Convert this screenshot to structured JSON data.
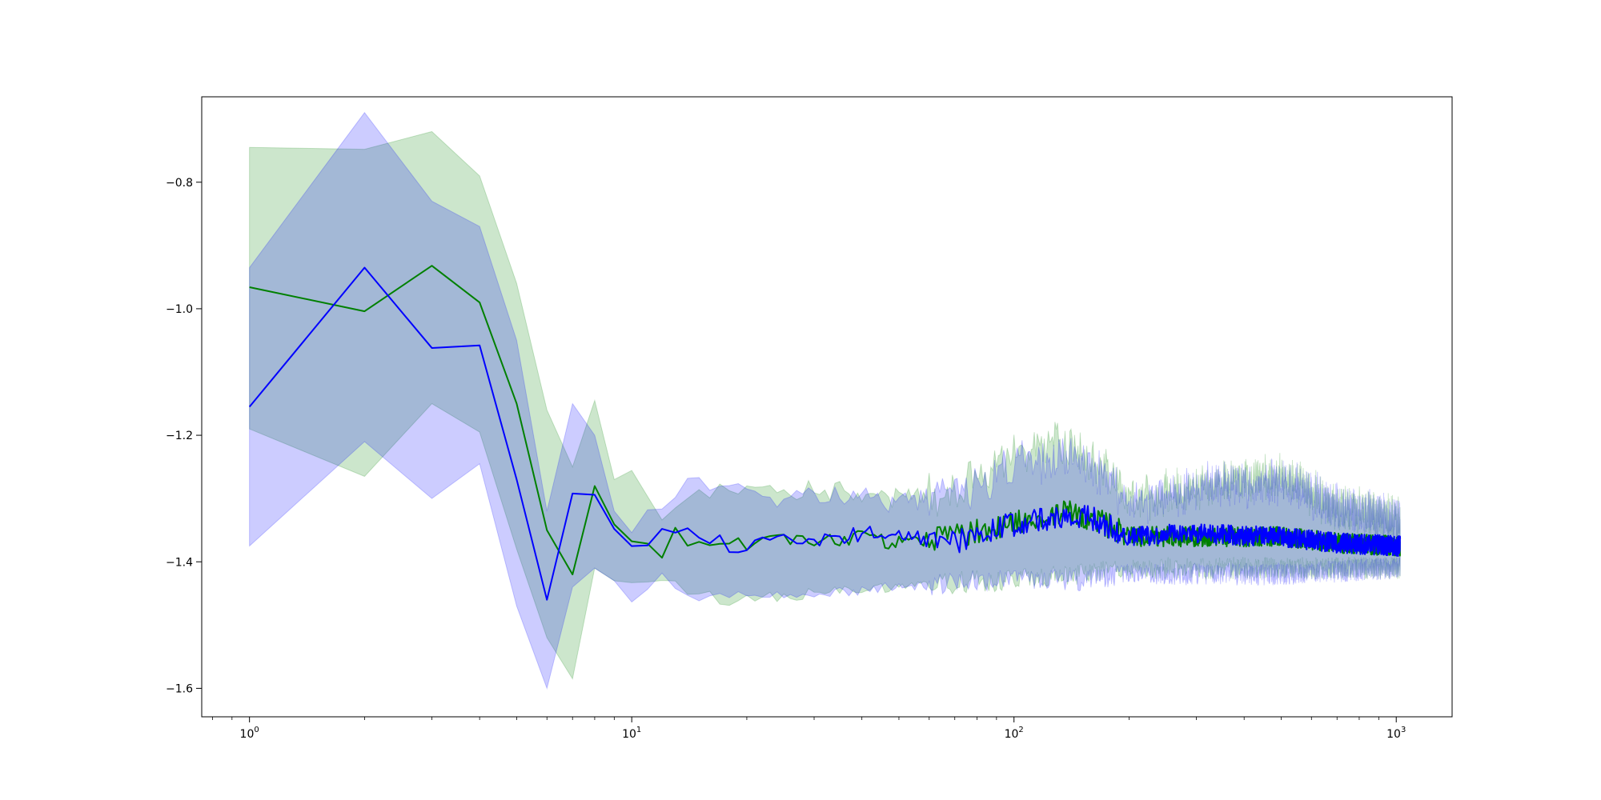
{
  "chart_data": {
    "type": "line",
    "title": "",
    "xlabel": "",
    "ylabel": "",
    "xscale": "log",
    "xlim": [
      0.75,
      1400
    ],
    "ylim": [
      -1.645,
      -0.665
    ],
    "grid": false,
    "legend": "none",
    "xticks": [
      {
        "base": "10",
        "exp": "0",
        "value": 1
      },
      {
        "base": "10",
        "exp": "1",
        "value": 10
      },
      {
        "base": "10",
        "exp": "2",
        "value": 100
      },
      {
        "base": "10",
        "exp": "3",
        "value": 1000
      }
    ],
    "yticks": [
      {
        "label": "−0.8",
        "value": -0.8
      },
      {
        "label": "−1.0",
        "value": -1.0
      },
      {
        "label": "−1.2",
        "value": -1.2
      },
      {
        "label": "−1.4",
        "value": -1.4
      },
      {
        "label": "−1.6",
        "value": -1.6
      }
    ],
    "series": [
      {
        "color": "#008000",
        "band_color": "#008000",
        "band_opacity": 0.2,
        "mean_key": [
          [
            1,
            -0.966
          ],
          [
            2,
            -1.004
          ],
          [
            3,
            -0.932
          ],
          [
            4,
            -0.99
          ],
          [
            5,
            -1.15
          ],
          [
            6,
            -1.35
          ],
          [
            7,
            -1.42
          ],
          [
            8,
            -1.27
          ],
          [
            9,
            -1.35
          ],
          [
            10,
            -1.36
          ],
          [
            11,
            -1.37
          ],
          [
            12,
            -1.39
          ],
          [
            13,
            -1.35
          ],
          [
            15,
            -1.38
          ],
          [
            18,
            -1.36
          ],
          [
            20,
            -1.37
          ],
          [
            25,
            -1.36
          ],
          [
            30,
            -1.37
          ],
          [
            40,
            -1.36
          ],
          [
            50,
            -1.37
          ],
          [
            70,
            -1.36
          ],
          [
            100,
            -1.34
          ],
          [
            130,
            -1.32
          ],
          [
            160,
            -1.33
          ],
          [
            200,
            -1.36
          ],
          [
            300,
            -1.36
          ],
          [
            500,
            -1.36
          ],
          [
            700,
            -1.37
          ],
          [
            1000,
            -1.375
          ]
        ],
        "upper_key": [
          [
            1,
            -0.745
          ],
          [
            2,
            -0.748
          ],
          [
            3,
            -0.72
          ],
          [
            4,
            -0.79
          ],
          [
            5,
            -0.96
          ],
          [
            6,
            -1.16
          ],
          [
            7,
            -1.25
          ],
          [
            8,
            -1.145
          ],
          [
            9,
            -1.27
          ],
          [
            10,
            -1.265
          ],
          [
            12,
            -1.32
          ],
          [
            15,
            -1.29
          ],
          [
            20,
            -1.28
          ],
          [
            30,
            -1.28
          ],
          [
            50,
            -1.29
          ],
          [
            80,
            -1.26
          ],
          [
            100,
            -1.22
          ],
          [
            140,
            -1.2
          ],
          [
            180,
            -1.25
          ],
          [
            200,
            -1.29
          ],
          [
            300,
            -1.27
          ],
          [
            500,
            -1.25
          ],
          [
            700,
            -1.3
          ],
          [
            1000,
            -1.32
          ]
        ],
        "lower_key": [
          [
            1,
            -1.19
          ],
          [
            2,
            -1.265
          ],
          [
            3,
            -1.15
          ],
          [
            4,
            -1.195
          ],
          [
            5,
            -1.38
          ],
          [
            6,
            -1.52
          ],
          [
            7,
            -1.585
          ],
          [
            8,
            -1.41
          ],
          [
            9,
            -1.43
          ],
          [
            10,
            -1.44
          ],
          [
            12,
            -1.43
          ],
          [
            15,
            -1.45
          ],
          [
            18,
            -1.465
          ],
          [
            20,
            -1.46
          ],
          [
            30,
            -1.45
          ],
          [
            50,
            -1.44
          ],
          [
            80,
            -1.43
          ],
          [
            100,
            -1.43
          ],
          [
            150,
            -1.42
          ],
          [
            200,
            -1.41
          ],
          [
            300,
            -1.41
          ],
          [
            500,
            -1.41
          ],
          [
            1000,
            -1.41
          ]
        ]
      },
      {
        "color": "#0000ff",
        "band_color": "#0000ff",
        "band_opacity": 0.2,
        "mean_key": [
          [
            1,
            -1.155
          ],
          [
            2,
            -0.935
          ],
          [
            3,
            -1.062
          ],
          [
            4,
            -1.058
          ],
          [
            5,
            -1.27
          ],
          [
            6,
            -1.46
          ],
          [
            7,
            -1.292
          ],
          [
            8,
            -1.305
          ],
          [
            9,
            -1.35
          ],
          [
            10,
            -1.378
          ],
          [
            11,
            -1.375
          ],
          [
            12,
            -1.35
          ],
          [
            14,
            -1.355
          ],
          [
            15,
            -1.37
          ],
          [
            17,
            -1.365
          ],
          [
            18,
            -1.385
          ],
          [
            20,
            -1.37
          ],
          [
            25,
            -1.36
          ],
          [
            30,
            -1.37
          ],
          [
            40,
            -1.355
          ],
          [
            50,
            -1.36
          ],
          [
            70,
            -1.37
          ],
          [
            100,
            -1.34
          ],
          [
            130,
            -1.33
          ],
          [
            160,
            -1.33
          ],
          [
            200,
            -1.36
          ],
          [
            300,
            -1.355
          ],
          [
            500,
            -1.36
          ],
          [
            700,
            -1.37
          ],
          [
            1000,
            -1.375
          ]
        ],
        "upper_key": [
          [
            1,
            -0.935
          ],
          [
            2,
            -0.69
          ],
          [
            3,
            -0.83
          ],
          [
            4,
            -0.87
          ],
          [
            5,
            -1.05
          ],
          [
            6,
            -1.32
          ],
          [
            7,
            -1.15
          ],
          [
            8,
            -1.2
          ],
          [
            9,
            -1.32
          ],
          [
            10,
            -1.34
          ],
          [
            12,
            -1.32
          ],
          [
            14,
            -1.26
          ],
          [
            17,
            -1.28
          ],
          [
            20,
            -1.29
          ],
          [
            30,
            -1.29
          ],
          [
            50,
            -1.3
          ],
          [
            80,
            -1.27
          ],
          [
            100,
            -1.24
          ],
          [
            140,
            -1.22
          ],
          [
            180,
            -1.26
          ],
          [
            200,
            -1.3
          ],
          [
            300,
            -1.27
          ],
          [
            500,
            -1.26
          ],
          [
            700,
            -1.3
          ],
          [
            1000,
            -1.32
          ]
        ],
        "lower_key": [
          [
            1,
            -1.375
          ],
          [
            2,
            -1.21
          ],
          [
            3,
            -1.3
          ],
          [
            4,
            -1.245
          ],
          [
            5,
            -1.47
          ],
          [
            6,
            -1.6
          ],
          [
            7,
            -1.44
          ],
          [
            8,
            -1.41
          ],
          [
            9,
            -1.43
          ],
          [
            10,
            -1.455
          ],
          [
            12,
            -1.42
          ],
          [
            15,
            -1.46
          ],
          [
            18,
            -1.45
          ],
          [
            20,
            -1.45
          ],
          [
            30,
            -1.45
          ],
          [
            50,
            -1.44
          ],
          [
            80,
            -1.43
          ],
          [
            100,
            -1.43
          ],
          [
            150,
            -1.43
          ],
          [
            200,
            -1.42
          ],
          [
            300,
            -1.42
          ],
          [
            500,
            -1.42
          ],
          [
            1000,
            -1.41
          ]
        ]
      }
    ]
  }
}
